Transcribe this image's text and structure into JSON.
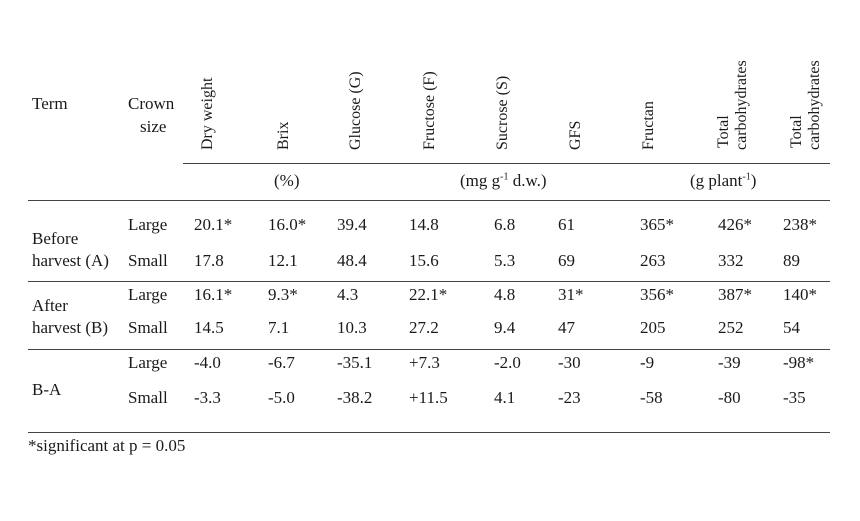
{
  "headers": {
    "term": "Term",
    "crown_size_1": "Crown",
    "crown_size_2": "size",
    "dry_weight": "Dry weight",
    "brix": "Brix",
    "glucose": "Glucose (G)",
    "fructose": "Fructose (F)",
    "sucrose": "Sucrose (S)",
    "gfs": "GFS",
    "fructan": "Fructan",
    "total_carb_1_a": "Total",
    "total_carb_1_b": "carbohydrates",
    "total_carb_2_a": "Total",
    "total_carb_2_b": "carbohydrates"
  },
  "units": {
    "percent": "(%)",
    "mg_pre": "(mg g",
    "mg_sup": "-1",
    "mg_post": " d.w.)",
    "g_pre": "(g plant",
    "g_sup": "-1",
    "g_post": ")"
  },
  "groups": [
    {
      "label_1": "Before",
      "label_2": "harvest (A)",
      "rows": [
        {
          "size": "Large",
          "values": [
            "20.1*",
            "16.0*",
            "39.4",
            "14.8",
            "6.8",
            "61",
            "365*",
            "426*",
            "238*"
          ]
        },
        {
          "size": "Small",
          "values": [
            "17.8",
            "12.1",
            "48.4",
            "15.6",
            "5.3",
            "69",
            "263",
            "332",
            "89"
          ]
        }
      ]
    },
    {
      "label_1": "After",
      "label_2": "harvest (B)",
      "rows": [
        {
          "size": "Large",
          "values": [
            "16.1*",
            "9.3*",
            "4.3",
            "22.1*",
            "4.8",
            "31*",
            "356*",
            "387*",
            "140*"
          ]
        },
        {
          "size": "Small",
          "values": [
            "14.5",
            "7.1",
            "10.3",
            "27.2",
            "9.4",
            "47",
            "205",
            "252",
            "54"
          ]
        }
      ]
    },
    {
      "label_1": "B-A",
      "label_2": "",
      "rows": [
        {
          "size": "Large",
          "values": [
            "-4.0",
            "-6.7",
            "-35.1",
            "+7.3",
            "-2.0",
            "-30",
            "-9",
            "-39",
            "-98*"
          ]
        },
        {
          "size": "Small",
          "values": [
            "-3.3",
            "-5.0",
            "-38.2",
            "+11.5",
            "4.1",
            "-23",
            "-58",
            "-80",
            "-35"
          ]
        }
      ]
    }
  ],
  "footnote": "*significant at p = 0.05"
}
